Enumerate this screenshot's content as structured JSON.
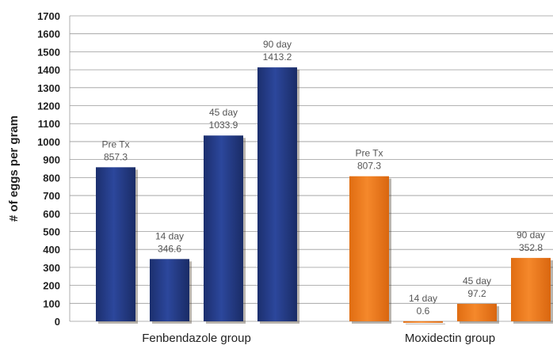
{
  "chart_data": {
    "type": "bar",
    "ylabel": "# of eggs per gram",
    "ylim": [
      0,
      1700
    ],
    "y_ticks": [
      "0",
      "100",
      "200",
      "300",
      "400",
      "500",
      "600",
      "700",
      "800",
      "900",
      "1000",
      "1100",
      "1200",
      "1300",
      "1400",
      "1500",
      "1600",
      "1700"
    ],
    "grid": true,
    "colors": {
      "fenbendazole": "#263f8c",
      "moxidectin": "#f07c21"
    },
    "groups": [
      {
        "name": "Fenbendazole group",
        "color_key": "fenbendazole",
        "bars": [
          {
            "label": "Pre Tx",
            "value": 857.3,
            "value_label": "857.3"
          },
          {
            "label": "14 day",
            "value": 346.6,
            "value_label": "346.6"
          },
          {
            "label": "45 day",
            "value": 1033.9,
            "value_label": "1033.9"
          },
          {
            "label": "90 day",
            "value": 1413.2,
            "value_label": "1413.2"
          }
        ]
      },
      {
        "name": "Moxidectin group",
        "color_key": "moxidectin",
        "bars": [
          {
            "label": "Pre Tx",
            "value": 807.3,
            "value_label": "807.3"
          },
          {
            "label": "14 day",
            "value": 0.6,
            "value_label": "0.6"
          },
          {
            "label": "45 day",
            "value": 97.2,
            "value_label": "97.2"
          },
          {
            "label": "90 day",
            "value": 352.8,
            "value_label": "352.8"
          }
        ]
      }
    ]
  }
}
